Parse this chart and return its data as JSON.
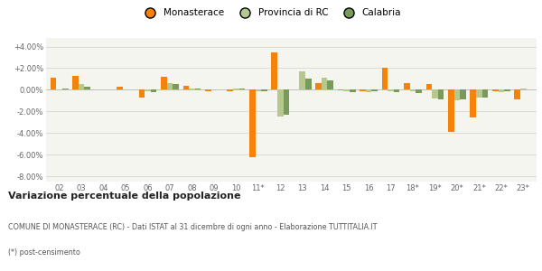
{
  "years": [
    "02",
    "03",
    "04",
    "05",
    "06",
    "07",
    "08",
    "09",
    "10",
    "11*",
    "12",
    "13",
    "14",
    "15",
    "16",
    "17",
    "18*",
    "19*",
    "20*",
    "21*",
    "22*",
    "23*"
  ],
  "monasterace": [
    1.1,
    1.3,
    0.0,
    0.3,
    -0.7,
    1.2,
    0.35,
    -0.15,
    -0.1,
    -6.2,
    3.5,
    0.05,
    0.6,
    -0.05,
    -0.1,
    2.0,
    0.6,
    0.5,
    -3.9,
    -2.6,
    -0.15,
    -0.9
  ],
  "provincia_rc": [
    -0.05,
    0.5,
    0.0,
    0.0,
    -0.1,
    0.6,
    0.1,
    0.0,
    0.1,
    -0.15,
    -2.5,
    1.7,
    1.1,
    -0.15,
    -0.2,
    -0.1,
    -0.1,
    -0.8,
    -1.0,
    -0.7,
    -0.2,
    0.1
  ],
  "calabria": [
    0.1,
    0.3,
    0.0,
    0.0,
    -0.2,
    0.5,
    0.15,
    0.0,
    0.1,
    -0.1,
    -2.3,
    1.0,
    0.9,
    -0.2,
    -0.1,
    -0.2,
    -0.3,
    -0.9,
    -0.9,
    -0.7,
    -0.15,
    0.05
  ],
  "color_monasterace": "#f5820a",
  "color_provincia": "#b5c98e",
  "color_calabria": "#7a9a5c",
  "bg_color": "#f5f5ef",
  "title_bold": "Variazione percentuale della popolazione",
  "footer1": "COMUNE DI MONASTERACE (RC) - Dati ISTAT al 31 dicembre di ogni anno - Elaborazione TUTTITALIA.IT",
  "footer2": "(*) post-censimento",
  "ylim": [
    -8.5,
    4.8
  ],
  "yticks": [
    -8.0,
    -6.0,
    -4.0,
    -2.0,
    0.0,
    2.0,
    4.0
  ],
  "ytick_labels": [
    "-8.00%",
    "-6.00%",
    "-4.00%",
    "-2.00%",
    "0.00%",
    "+2.00%",
    "+4.00%"
  ]
}
